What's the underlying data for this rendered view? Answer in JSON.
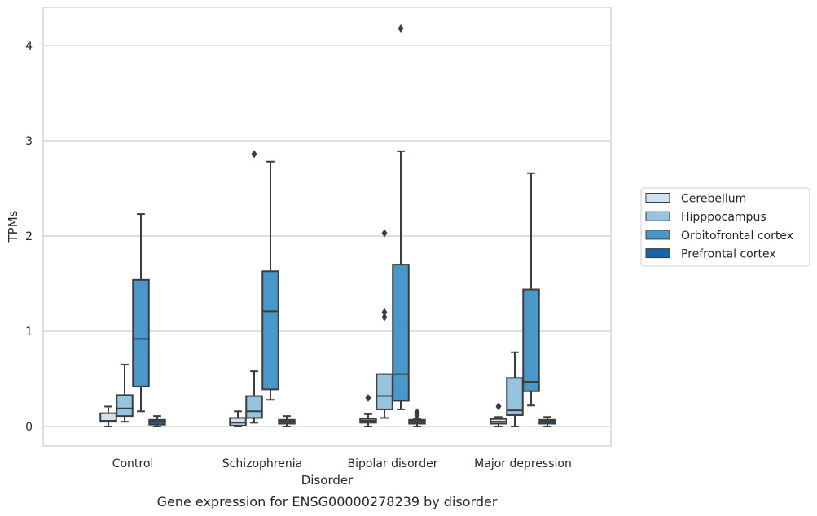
{
  "caption": "Gene expression for ENSG00000278239 by disorder",
  "chart_data": {
    "type": "box",
    "title": "",
    "xlabel": "Disorder",
    "ylabel": "TPMs",
    "ylim": [
      -0.2,
      4.4
    ],
    "yticks": [
      0,
      1,
      2,
      3,
      4
    ],
    "grid": "horizontal",
    "legend_position": "right",
    "categories": [
      "Control",
      "Schizophrenia",
      "Bipolar disorder",
      "Major depression"
    ],
    "series": [
      {
        "name": "Cerebellum",
        "color": "#d0e1f2",
        "boxes": [
          {
            "whislo": 0.0,
            "q1": 0.05,
            "med": 0.06,
            "q3": 0.14,
            "whishi": 0.21,
            "fliers": []
          },
          {
            "whislo": 0.0,
            "q1": 0.01,
            "med": 0.04,
            "q3": 0.09,
            "whishi": 0.16,
            "fliers": []
          },
          {
            "whislo": 0.0,
            "q1": 0.04,
            "med": 0.06,
            "q3": 0.08,
            "whishi": 0.13,
            "fliers": [
              0.3
            ]
          },
          {
            "whislo": 0.0,
            "q1": 0.03,
            "med": 0.05,
            "q3": 0.08,
            "whishi": 0.1,
            "fliers": [
              0.21
            ]
          }
        ]
      },
      {
        "name": "Hipppocampus",
        "color": "#94c4df",
        "boxes": [
          {
            "whislo": 0.05,
            "q1": 0.11,
            "med": 0.19,
            "q3": 0.33,
            "whishi": 0.65,
            "fliers": []
          },
          {
            "whislo": 0.04,
            "q1": 0.09,
            "med": 0.16,
            "q3": 0.32,
            "whishi": 0.58,
            "fliers": [
              2.86
            ]
          },
          {
            "whislo": 0.09,
            "q1": 0.18,
            "med": 0.32,
            "q3": 0.55,
            "whishi": 0.55,
            "fliers": [
              1.15,
              1.2,
              2.03
            ]
          },
          {
            "whislo": 0.0,
            "q1": 0.12,
            "med": 0.17,
            "q3": 0.51,
            "whishi": 0.78,
            "fliers": []
          }
        ]
      },
      {
        "name": "Orbitofrontal cortex",
        "color": "#4a98c9",
        "boxes": [
          {
            "whislo": 0.16,
            "q1": 0.42,
            "med": 0.92,
            "q3": 1.54,
            "whishi": 2.23,
            "fliers": []
          },
          {
            "whislo": 0.28,
            "q1": 0.39,
            "med": 1.21,
            "q3": 1.63,
            "whishi": 2.78,
            "fliers": []
          },
          {
            "whislo": 0.18,
            "q1": 0.27,
            "med": 0.55,
            "q3": 1.7,
            "whishi": 2.89,
            "fliers": [
              4.18
            ]
          },
          {
            "whislo": 0.22,
            "q1": 0.37,
            "med": 0.47,
            "q3": 1.44,
            "whishi": 2.66,
            "fliers": []
          }
        ]
      },
      {
        "name": "Prefrontal cortex",
        "color": "#1764ab",
        "boxes": [
          {
            "whislo": 0.0,
            "q1": 0.02,
            "med": 0.05,
            "q3": 0.07,
            "whishi": 0.11,
            "fliers": []
          },
          {
            "whislo": 0.0,
            "q1": 0.03,
            "med": 0.05,
            "q3": 0.07,
            "whishi": 0.11,
            "fliers": []
          },
          {
            "whislo": 0.0,
            "q1": 0.03,
            "med": 0.05,
            "q3": 0.07,
            "whishi": 0.08,
            "fliers": [
              0.12,
              0.15
            ]
          },
          {
            "whislo": 0.0,
            "q1": 0.03,
            "med": 0.05,
            "q3": 0.07,
            "whishi": 0.1,
            "fliers": []
          }
        ]
      }
    ]
  }
}
